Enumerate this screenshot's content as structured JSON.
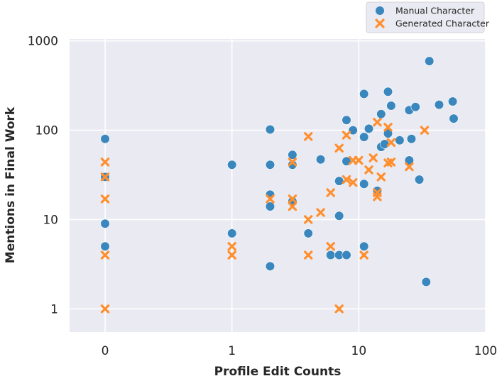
{
  "chart_data": {
    "type": "scatter",
    "title": "",
    "xlabel": "Profile Edit Counts",
    "ylabel": "Mentions in Final Work",
    "x_scale": "symlog",
    "y_scale": "log",
    "xlim": [
      -0.28,
      100
    ],
    "ylim": [
      0.55,
      1050
    ],
    "x_ticks": [
      0,
      1,
      10,
      100
    ],
    "x_tick_labels": [
      "0",
      "1",
      "10",
      "100"
    ],
    "y_ticks": [
      1,
      10,
      100,
      1000
    ],
    "y_tick_labels": [
      "1",
      "10",
      "100",
      "1000"
    ],
    "grid": true,
    "legend_position": "top-right",
    "colors": {
      "background": "#eaeaf2",
      "grid": "#ffffff",
      "manual": "#3a87be",
      "generated": "#ff8f2e"
    },
    "series": [
      {
        "name": "Manual Character",
        "marker": "circle",
        "points": [
          [
            0,
            80
          ],
          [
            0,
            30
          ],
          [
            0,
            9
          ],
          [
            0,
            5
          ],
          [
            1,
            41
          ],
          [
            1,
            7
          ],
          [
            2,
            102
          ],
          [
            2,
            41
          ],
          [
            2,
            19
          ],
          [
            2,
            14
          ],
          [
            2,
            3
          ],
          [
            3,
            53
          ],
          [
            3,
            41
          ],
          [
            3,
            16
          ],
          [
            4,
            7
          ],
          [
            5,
            47
          ],
          [
            6,
            4
          ],
          [
            7,
            27
          ],
          [
            7,
            11
          ],
          [
            7,
            4
          ],
          [
            8,
            130
          ],
          [
            8,
            45
          ],
          [
            8,
            4
          ],
          [
            9,
            100
          ],
          [
            11,
            255
          ],
          [
            11,
            84
          ],
          [
            11,
            25
          ],
          [
            11,
            5
          ],
          [
            12,
            104
          ],
          [
            14,
            21
          ],
          [
            15,
            152
          ],
          [
            15,
            65
          ],
          [
            16,
            70
          ],
          [
            17,
            270
          ],
          [
            17,
            92
          ],
          [
            18,
            188
          ],
          [
            21,
            77
          ],
          [
            25,
            168
          ],
          [
            25,
            46
          ],
          [
            26,
            80
          ],
          [
            28,
            182
          ],
          [
            30,
            28
          ],
          [
            34,
            2
          ],
          [
            36,
            595
          ],
          [
            43,
            193
          ],
          [
            55,
            210
          ],
          [
            56,
            135
          ]
        ]
      },
      {
        "name": "Generated Character",
        "marker": "x",
        "points": [
          [
            0,
            44
          ],
          [
            0,
            30
          ],
          [
            0,
            17
          ],
          [
            0,
            4
          ],
          [
            0,
            1
          ],
          [
            1,
            5
          ],
          [
            1,
            4
          ],
          [
            2,
            17
          ],
          [
            3,
            44
          ],
          [
            3,
            17
          ],
          [
            3,
            14
          ],
          [
            4,
            85
          ],
          [
            4,
            10
          ],
          [
            4,
            4
          ],
          [
            5,
            12
          ],
          [
            6,
            20
          ],
          [
            6,
            5
          ],
          [
            7,
            63
          ],
          [
            7,
            1
          ],
          [
            8,
            88
          ],
          [
            8,
            28
          ],
          [
            9,
            46
          ],
          [
            9,
            26
          ],
          [
            10,
            46
          ],
          [
            11,
            4
          ],
          [
            12,
            36
          ],
          [
            13,
            49
          ],
          [
            14,
            123
          ],
          [
            14,
            20
          ],
          [
            14,
            18
          ],
          [
            15,
            30
          ],
          [
            17,
            108
          ],
          [
            17,
            43
          ],
          [
            18,
            73
          ],
          [
            18,
            44
          ],
          [
            25,
            39
          ],
          [
            33,
            100
          ]
        ]
      }
    ]
  }
}
